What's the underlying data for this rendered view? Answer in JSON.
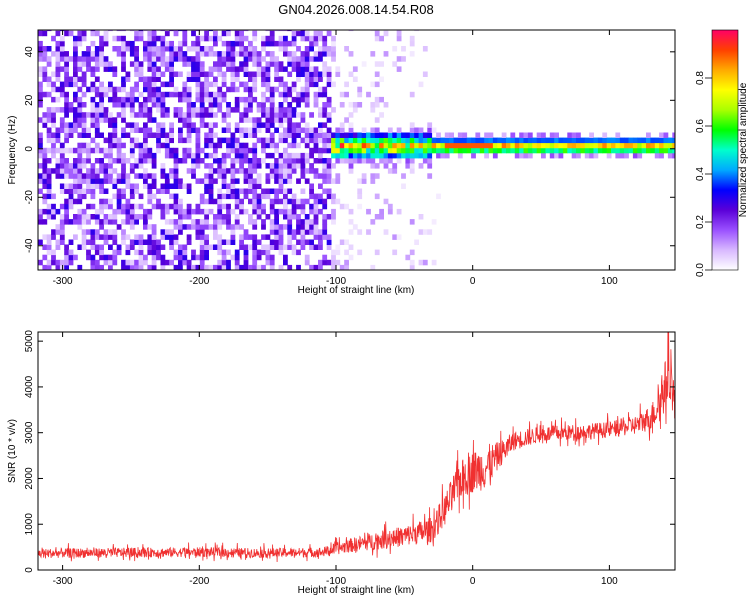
{
  "figure": {
    "title": "GN04.2026.008.14.54.R08"
  },
  "chart_data": [
    {
      "type": "heatmap",
      "title": "GN04.2026.008.14.54.R08",
      "xlabel": "Height of straight line (km)",
      "ylabel": "Frequency (Hz)",
      "xlim": [
        -318,
        148
      ],
      "ylim": [
        -50,
        49
      ],
      "x_ticks": [
        -300,
        -200,
        -100,
        0,
        100
      ],
      "x_tick_labels": [
        "-300",
        "-200",
        "-100",
        "0",
        "100"
      ],
      "y_ticks": [
        -40,
        -20,
        0,
        20,
        40
      ],
      "y_tick_labels": [
        "-40",
        "-20",
        "0",
        "20",
        "40"
      ],
      "colorbar": {
        "label": "Normalized spectral amplitude",
        "range": [
          0,
          1
        ],
        "ticks": [
          0.0,
          0.2,
          0.4,
          0.6,
          0.8
        ],
        "tick_labels": [
          "0.0",
          "0.2",
          "0.4",
          "0.6",
          "0.8"
        ],
        "colormap": [
          "#ffffff",
          "#d8b8ff",
          "#9a50ff",
          "#5a00d8",
          "#0000ff",
          "#00aaff",
          "#00ffcc",
          "#00ff00",
          "#aaff00",
          "#ffff00",
          "#ffaa00",
          "#ff4000",
          "#ff0066"
        ]
      },
      "features": [
        {
          "region": "noise",
          "x_range": [
            -318,
            -103
          ],
          "freq_range": [
            -50,
            49
          ],
          "amplitude": [
            0.05,
            0.3
          ]
        },
        {
          "region": "sparse",
          "x_range": [
            -103,
            -20
          ],
          "freq_range": [
            -50,
            49
          ],
          "amplitude": [
            0.02,
            0.12
          ]
        },
        {
          "region": "signal-band",
          "x_range": [
            -103,
            148
          ],
          "center_freq": 1,
          "half_width": 3,
          "amplitude": [
            0.3,
            1.0
          ]
        }
      ],
      "grid": false
    },
    {
      "type": "line",
      "xlabel": "Height of straight line (km)",
      "ylabel": "SNR (10 * v/v)",
      "xlim": [
        -318,
        148
      ],
      "ylim": [
        0,
        5200
      ],
      "x_ticks": [
        -300,
        -200,
        -100,
        0,
        100
      ],
      "x_tick_labels": [
        "-300",
        "-200",
        "-100",
        "0",
        "100"
      ],
      "y_ticks": [
        0,
        1000,
        2000,
        3000,
        4000,
        5000
      ],
      "y_tick_labels": [
        "0",
        "1000",
        "2000",
        "3000",
        "4000",
        "5000"
      ],
      "color": "#f03030",
      "series": [
        {
          "x": [
            -318,
            -300,
            -250,
            -200,
            -150,
            -110,
            -90,
            -70,
            -50,
            -30,
            -20,
            -10,
            0,
            10,
            20,
            30,
            50,
            80,
            100,
            120,
            130,
            135,
            140,
            145,
            148
          ],
          "y": [
            350,
            360,
            370,
            380,
            360,
            380,
            520,
            620,
            720,
            850,
            1300,
            1900,
            2100,
            2200,
            2500,
            2800,
            2950,
            3000,
            3050,
            3150,
            3300,
            3500,
            3900,
            4300,
            3400
          ],
          "noise": [
            150,
            150,
            150,
            150,
            150,
            150,
            220,
            280,
            320,
            400,
            500,
            600,
            650,
            700,
            400,
            300,
            250,
            250,
            250,
            300,
            400,
            500,
            800,
            900,
            700
          ]
        }
      ],
      "grid": false
    }
  ]
}
